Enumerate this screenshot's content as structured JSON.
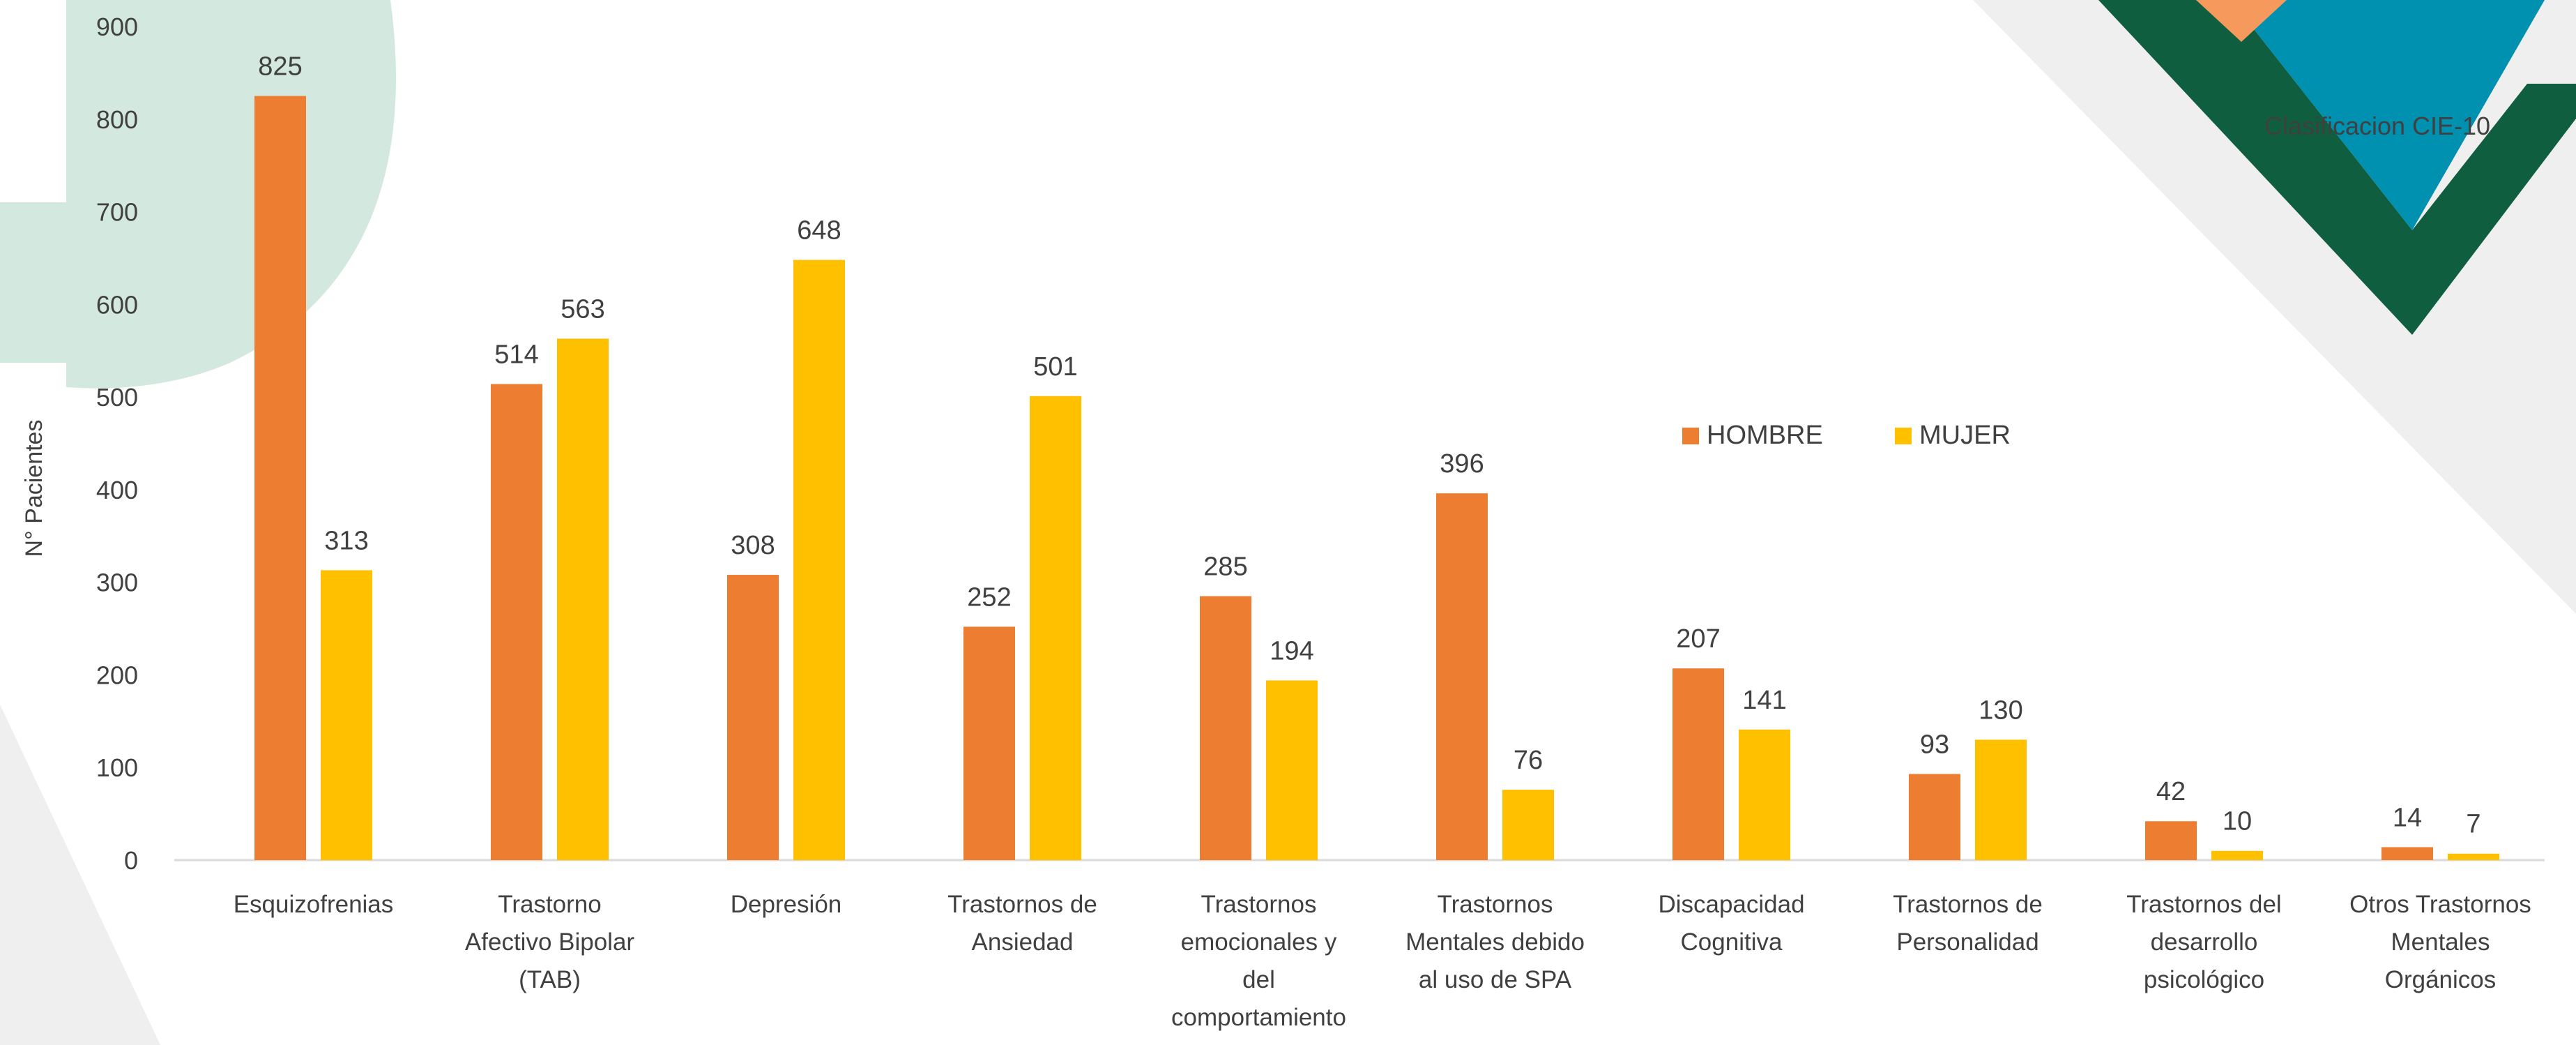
{
  "chart_data": {
    "type": "bar",
    "title": "Clasificacion CIE-10",
    "ylabel": "N° Pacientes",
    "xlabel": "",
    "ylim": [
      0,
      900
    ],
    "yticks": [
      0,
      100,
      200,
      300,
      400,
      500,
      600,
      700,
      800,
      900
    ],
    "grid": false,
    "legend_position": "center-right",
    "categories": [
      [
        "Esquizofrenias"
      ],
      [
        "Trastorno",
        "Afectivo Bipolar",
        "(TAB)"
      ],
      [
        "Depresión"
      ],
      [
        "Trastornos de",
        "Ansiedad"
      ],
      [
        "Trastornos",
        "emocionales y",
        "del",
        "comportamiento"
      ],
      [
        "Trastornos",
        "Mentales debido",
        "al uso de SPA"
      ],
      [
        "Discapacidad",
        "Cognitiva"
      ],
      [
        "Trastornos de",
        "Personalidad"
      ],
      [
        "Trastornos del",
        "desarrollo",
        "psicológico"
      ],
      [
        "Otros Trastornos",
        "Mentales",
        "Orgánicos"
      ]
    ],
    "series": [
      {
        "name": "HOMBRE",
        "color": "#ED7D31",
        "values": [
          825,
          514,
          308,
          252,
          285,
          396,
          207,
          93,
          42,
          14
        ]
      },
      {
        "name": "MUJER",
        "color": "#FFC000",
        "values": [
          313,
          563,
          648,
          501,
          194,
          76,
          141,
          130,
          10,
          7
        ]
      }
    ]
  },
  "colors": {
    "background": "#FFFFFF",
    "axis_text": "#404040",
    "axis_line": "#D9D9D9",
    "deco_mint": "#D3E8DF",
    "deco_gray": "#EFEFEF",
    "deco_dark_green": "#0E5E3F",
    "deco_blue": "#0090B0",
    "deco_orange": "#F59A5C"
  }
}
